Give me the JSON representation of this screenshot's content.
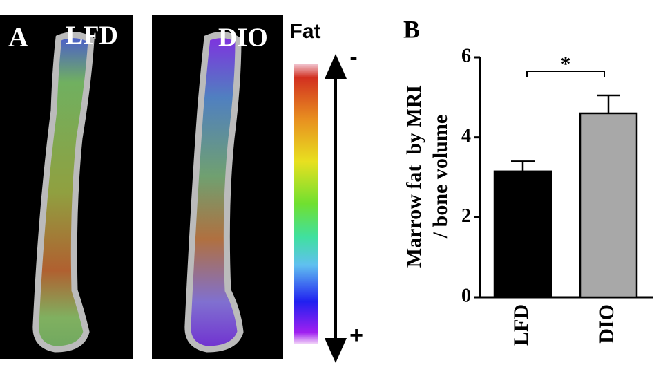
{
  "panel_a": {
    "label": "A",
    "images": [
      {
        "label": "LFD"
      },
      {
        "label": "DIO"
      }
    ],
    "colorbar": {
      "title": "Fat",
      "top": "-",
      "bottom": "+"
    }
  },
  "panel_b_label": "B",
  "chart_data": {
    "type": "bar",
    "ylabel": [
      "Marrow fat  by MRI",
      "/ bone volume"
    ],
    "categories": [
      "LFD",
      "DIO"
    ],
    "values": [
      3.15,
      4.6
    ],
    "errors": [
      0.25,
      0.45
    ],
    "colors": [
      "#000000",
      "#a8a8a8"
    ],
    "ylim": [
      0,
      6
    ],
    "yticks": [
      0,
      2,
      4,
      6
    ],
    "significance": "*"
  }
}
